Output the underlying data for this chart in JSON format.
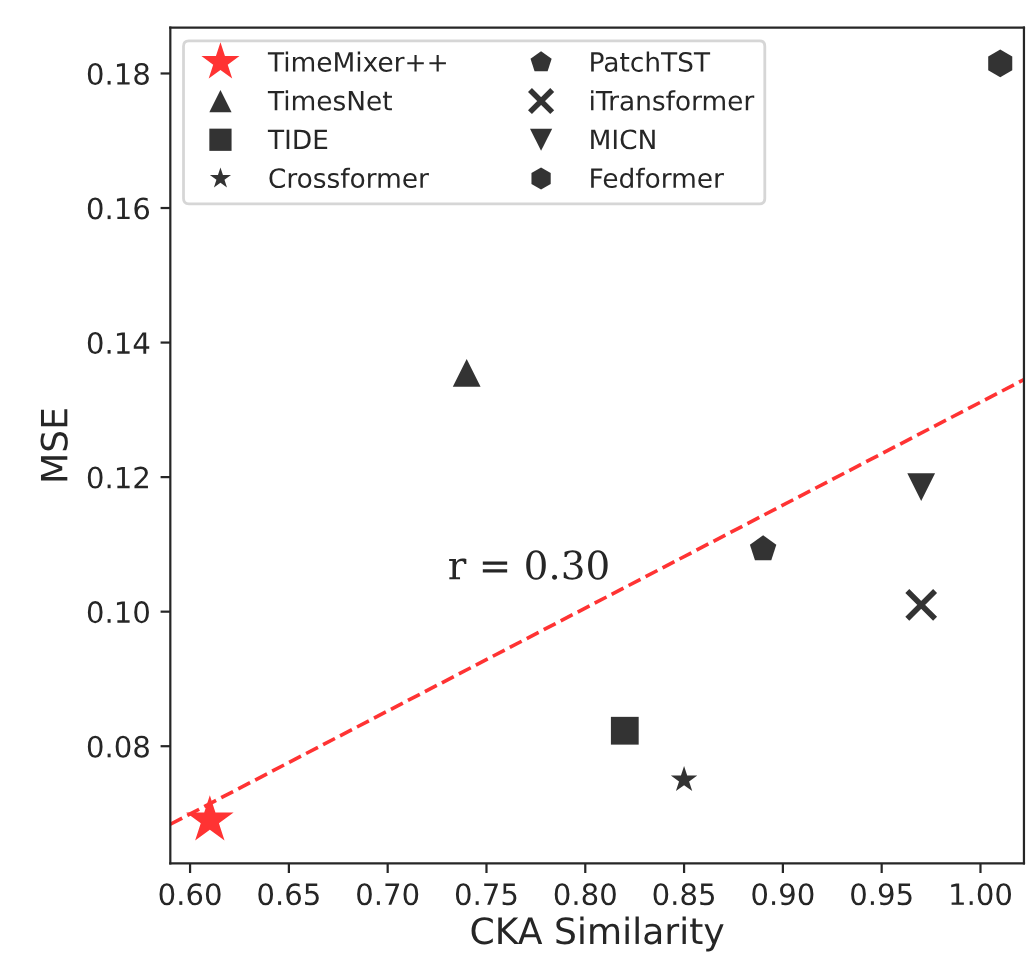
{
  "chart_data": {
    "type": "scatter",
    "xlabel": "CKA Similarity",
    "ylabel": "MSE",
    "xlim": [
      0.59,
      1.022
    ],
    "ylim": [
      0.0626,
      0.1868
    ],
    "xticks": [
      {
        "value": 0.6,
        "label": "0.60"
      },
      {
        "value": 0.65,
        "label": "0.65"
      },
      {
        "value": 0.7,
        "label": "0.70"
      },
      {
        "value": 0.75,
        "label": "0.75"
      },
      {
        "value": 0.8,
        "label": "0.80"
      },
      {
        "value": 0.85,
        "label": "0.85"
      },
      {
        "value": 0.9,
        "label": "0.90"
      },
      {
        "value": 0.95,
        "label": "0.95"
      },
      {
        "value": 1.0,
        "label": "1.00"
      }
    ],
    "yticks": [
      {
        "value": 0.08,
        "label": "0.08"
      },
      {
        "value": 0.1,
        "label": "0.10"
      },
      {
        "value": 0.12,
        "label": "0.12"
      },
      {
        "value": 0.14,
        "label": "0.14"
      },
      {
        "value": 0.16,
        "label": "0.16"
      },
      {
        "value": 0.18,
        "label": "0.18"
      }
    ],
    "grid": false,
    "legend": "top left",
    "annotations": [
      "r = 0.30"
    ],
    "series": [
      {
        "name": "TimeMixer++",
        "color": "#ff3333",
        "marker": "star",
        "x": [
          0.61
        ],
        "values": [
          0.069
        ]
      },
      {
        "name": "TimesNet",
        "color": "#333333",
        "marker": "triangle",
        "x": [
          0.74
        ],
        "values": [
          0.1355
        ]
      },
      {
        "name": "TIDE",
        "color": "#333333",
        "marker": "square",
        "x": [
          0.82
        ],
        "values": [
          0.0823
        ]
      },
      {
        "name": "Crossformer",
        "color": "#333333",
        "marker": "star",
        "x": [
          0.85
        ],
        "values": [
          0.075
        ]
      },
      {
        "name": "PatchTST",
        "color": "#333333",
        "x": [
          0.89
        ],
        "values": [
          0.1093
        ]
      },
      {
        "name": "iTransformer",
        "color": "#333333",
        "marker": "cross",
        "x": [
          0.97
        ],
        "values": [
          0.101
        ]
      },
      {
        "name": "MICN",
        "color": "#333333",
        "marker": "triangle_down",
        "x": [
          0.97
        ],
        "values": [
          0.1185
        ]
      },
      {
        "name": "Fedformer",
        "color": "#333333",
        "x": [
          1.01
        ],
        "values": [
          0.1815
        ]
      },
      {
        "type": "line",
        "color": "#ff3333",
        "line_style": "dashed",
        "marker": "none",
        "x": [
          0.59,
          1.022
        ],
        "values": [
          0.0684,
          0.1345
        ]
      }
    ]
  }
}
